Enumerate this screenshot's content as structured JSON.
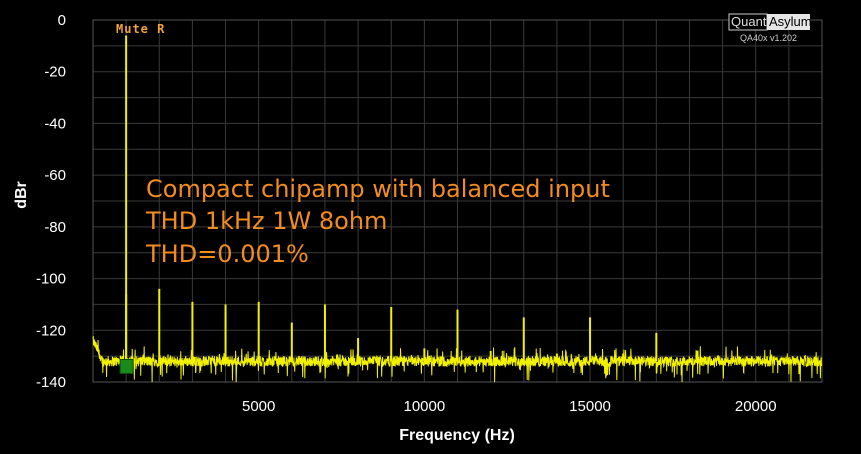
{
  "brand": {
    "quant": "Quant",
    "asylum": "Asylum",
    "version": "QA40x v1.202"
  },
  "mute_label": "Mute R",
  "chart_data": {
    "type": "line",
    "xlabel": "Frequency (Hz)",
    "ylabel": "dBr",
    "xlim": [
      0,
      22000
    ],
    "ylim": [
      -140,
      0
    ],
    "x_ticks": [
      5000,
      10000,
      15000,
      20000
    ],
    "y_ticks": [
      0,
      -20,
      -40,
      -60,
      -80,
      -100,
      -120,
      -140
    ],
    "grid": true,
    "line_color": "#f2f200",
    "annotations": [
      "Compact chipamp with balanced input",
      "THD 1kHz 1W 8ohm",
      "THD=0.001%"
    ],
    "noise_floor_dBr": -132,
    "fundamental": {
      "x": 1000,
      "y": -6
    },
    "harmonics": [
      {
        "x": 1000,
        "y": -106
      },
      {
        "x": 2000,
        "y": -104
      },
      {
        "x": 3000,
        "y": -109
      },
      {
        "x": 4000,
        "y": -110
      },
      {
        "x": 5000,
        "y": -109
      },
      {
        "x": 6000,
        "y": -117
      },
      {
        "x": 7000,
        "y": -110
      },
      {
        "x": 8000,
        "y": -123
      },
      {
        "x": 9000,
        "y": -111
      },
      {
        "x": 10000,
        "y": -127
      },
      {
        "x": 11000,
        "y": -112
      },
      {
        "x": 12000,
        "y": -128
      },
      {
        "x": 13000,
        "y": -115
      },
      {
        "x": 14000,
        "y": -129
      },
      {
        "x": 15000,
        "y": -115
      },
      {
        "x": 16000,
        "y": -129
      },
      {
        "x": 17000,
        "y": -121
      }
    ],
    "marker": {
      "x": 1000,
      "y": -134,
      "color": "#1a8a1a"
    }
  }
}
